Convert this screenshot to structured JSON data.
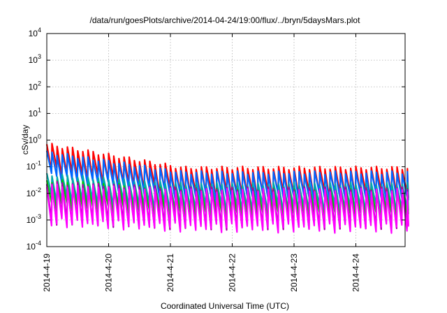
{
  "chart_data": {
    "type": "line",
    "title": "/data/run/goesPlots/archive/2014-04-24/19:00/flux/../bryn/5daysMars.plot",
    "xlabel": "Coordinated Universal Time (UTC)",
    "ylabel": "cSv/day",
    "y_scale": "log",
    "ylim": [
      0.0001,
      10000
    ],
    "xlim_days": [
      0,
      5.85
    ],
    "x_ticks": [
      "2014-4-19",
      "2014-4-20",
      "2014-4-21",
      "2014-4-22",
      "2014-4-23",
      "2014-4-24"
    ],
    "y_ticks": [
      {
        "base": "10",
        "exp": "-4"
      },
      {
        "base": "10",
        "exp": "-3"
      },
      {
        "base": "10",
        "exp": "-2"
      },
      {
        "base": "10",
        "exp": "-1"
      },
      {
        "base": "10",
        "exp": "0"
      },
      {
        "base": "10",
        "exp": "1"
      },
      {
        "base": "10",
        "exp": "2"
      },
      {
        "base": "10",
        "exp": "3"
      },
      {
        "base": "10",
        "exp": "4"
      }
    ],
    "grid": true,
    "cycles_per_day": 12,
    "series": [
      {
        "color": "#ff0000",
        "peak_start": 0.7,
        "peak_end": 0.09,
        "trough_ratio": 0.1
      },
      {
        "color": "#0066ff",
        "peak_start": 0.35,
        "peak_end": 0.06,
        "trough_ratio": 0.12
      },
      {
        "color": "#00aaaa",
        "peak_start": 0.05,
        "peak_end": 0.022,
        "trough_ratio": 0.12
      },
      {
        "color": "#00cc00",
        "peak_start": 0.03,
        "peak_end": 0.014,
        "trough_ratio": 0.12
      },
      {
        "color": "#aa00aa",
        "peak_start": 0.025,
        "peak_end": 0.015,
        "trough_ratio": 0.04
      },
      {
        "color": "#ff00ff",
        "peak_start": 0.02,
        "peak_end": 0.013,
        "trough_ratio": 0.04
      }
    ]
  }
}
